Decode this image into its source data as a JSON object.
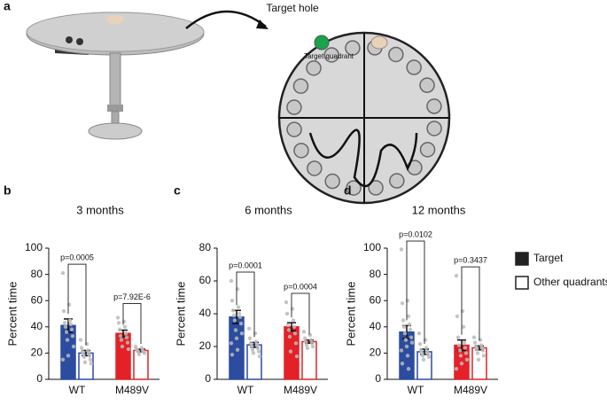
{
  "panel_a": {
    "label": "a",
    "target_hole": "Target hole",
    "target_quadrant": "Target quadrant"
  },
  "legend": [
    {
      "name": "Target"
    },
    {
      "name": "Other quadrants"
    }
  ],
  "chart_data": [
    {
      "type": "bar",
      "panel": "b",
      "title": "3 months",
      "ylabel": "Percent time",
      "categories": [
        "WT",
        "M489V"
      ],
      "colors": [
        "#2b4c9f",
        "#e42127"
      ],
      "ylim": [
        0,
        100
      ],
      "yticks": [
        0,
        20,
        40,
        60,
        80,
        100
      ],
      "p_values": [
        "p=0.0005",
        "p=7.92E-6"
      ],
      "series": [
        {
          "values": [
            41,
            35
          ],
          "errors": [
            5,
            2.5
          ],
          "points": [
            [
              81,
              57,
              52,
              45,
              43,
              42,
              40,
              38,
              36,
              33,
              30,
              25,
              18,
              15
            ],
            [
              47,
              44,
              43,
              40,
              38,
              35,
              33,
              32,
              30,
              28,
              25,
              23
            ]
          ]
        },
        {
          "values": [
            20,
            22
          ],
          "errors": [
            2,
            1
          ],
          "points": [
            [
              30,
              27,
              24,
              22,
              21,
              20,
              19,
              18,
              17,
              15,
              13,
              12
            ],
            [
              25,
              24,
              23,
              22,
              22,
              21,
              21,
              20,
              19
            ]
          ]
        }
      ]
    },
    {
      "type": "bar",
      "panel": "c",
      "title": "6 months",
      "ylabel": "Percent time",
      "categories": [
        "WT",
        "M489V"
      ],
      "colors": [
        "#2b4c9f",
        "#e42127"
      ],
      "ylim": [
        0,
        80
      ],
      "yticks": [
        0,
        20,
        40,
        60,
        80
      ],
      "p_values": [
        "p=0.0001",
        "p=0.0004"
      ],
      "series": [
        {
          "values": [
            38,
            32
          ],
          "errors": [
            4,
            2.5
          ],
          "points": [
            [
              60,
              55,
              48,
              44,
              42,
              40,
              39,
              38,
              36,
              34,
              30,
              28,
              25,
              22,
              18,
              15
            ],
            [
              47,
              43,
              40,
              36,
              33,
              32,
              30,
              28,
              26,
              22,
              17,
              14
            ]
          ]
        },
        {
          "values": [
            21,
            23
          ],
          "errors": [
            1.5,
            1
          ],
          "points": [
            [
              31,
              28,
              25,
              23,
              22,
              21,
              20,
              19,
              18,
              17,
              16,
              14
            ],
            [
              29,
              27,
              25,
              24,
              23,
              22,
              21,
              20,
              19
            ]
          ]
        }
      ]
    },
    {
      "type": "bar",
      "panel": "d",
      "title": "12 months",
      "ylabel": "Percent time",
      "categories": [
        "WT",
        "M489V"
      ],
      "colors": [
        "#2b4c9f",
        "#e42127"
      ],
      "ylim": [
        0,
        100
      ],
      "yticks": [
        0,
        20,
        40,
        60,
        80,
        100
      ],
      "p_values": [
        "p=0.0102",
        "p=0.3437"
      ],
      "series": [
        {
          "values": [
            36,
            26
          ],
          "errors": [
            5,
            4
          ],
          "points": [
            [
              99,
              60,
              58,
              48,
              45,
              42,
              40,
              38,
              35,
              32,
              30,
              28,
              25,
              22,
              18,
              12,
              8
            ],
            [
              79,
              52,
              48,
              40,
              32,
              28,
              26,
              24,
              22,
              20,
              18,
              15,
              12,
              8
            ]
          ]
        },
        {
          "values": [
            21,
            24
          ],
          "errors": [
            2,
            1.5
          ],
          "points": [
            [
              35,
              30,
              27,
              24,
              22,
              21,
              20,
              19,
              18,
              17,
              15
            ],
            [
              32,
              30,
              28,
              26,
              25,
              24,
              23,
              22,
              20,
              18,
              15
            ]
          ]
        }
      ]
    }
  ]
}
